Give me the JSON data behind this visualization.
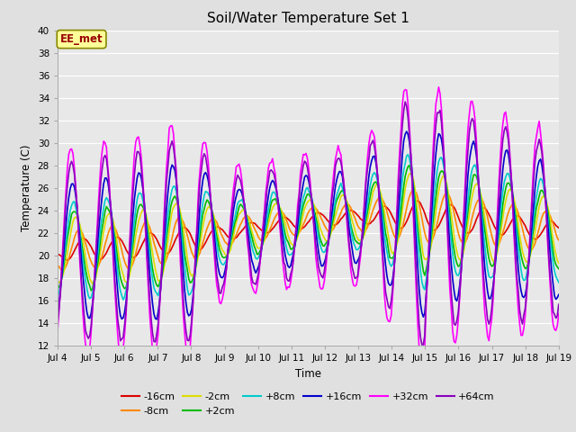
{
  "title": "Soil/Water Temperature Set 1",
  "xlabel": "Time",
  "ylabel": "Temperature (C)",
  "ylim": [
    12,
    40
  ],
  "yticks": [
    12,
    14,
    16,
    18,
    20,
    22,
    24,
    26,
    28,
    30,
    32,
    34,
    36,
    38,
    40
  ],
  "xtick_labels": [
    "Jul 4",
    "Jul 5",
    "Jul 6",
    "Jul 7",
    "Jul 8",
    "Jul 9",
    "Jul 10",
    "Jul 11",
    "Jul 12",
    "Jul 13",
    "Jul 14",
    "Jul 15",
    "Jul 16",
    "Jul 17",
    "Jul 18",
    "Jul 19"
  ],
  "annotation_text": "EE_met",
  "annotation_bg": "#ffff99",
  "annotation_border": "#888800",
  "annotation_text_color": "#990000",
  "series": {
    "-16cm": {
      "color": "#dd0000",
      "lw": 1.2
    },
    "-8cm": {
      "color": "#ff8800",
      "lw": 1.2
    },
    "-2cm": {
      "color": "#dddd00",
      "lw": 1.2
    },
    "+2cm": {
      "color": "#00bb00",
      "lw": 1.2
    },
    "+8cm": {
      "color": "#00cccc",
      "lw": 1.2
    },
    "+16cm": {
      "color": "#0000cc",
      "lw": 1.2
    },
    "+32cm": {
      "color": "#ff00ff",
      "lw": 1.2
    },
    "+64cm": {
      "color": "#8800bb",
      "lw": 1.2
    }
  },
  "legend_order": [
    "-16cm",
    "-8cm",
    "-2cm",
    "+2cm",
    "+8cm",
    "+16cm",
    "+32cm",
    "+64cm"
  ]
}
